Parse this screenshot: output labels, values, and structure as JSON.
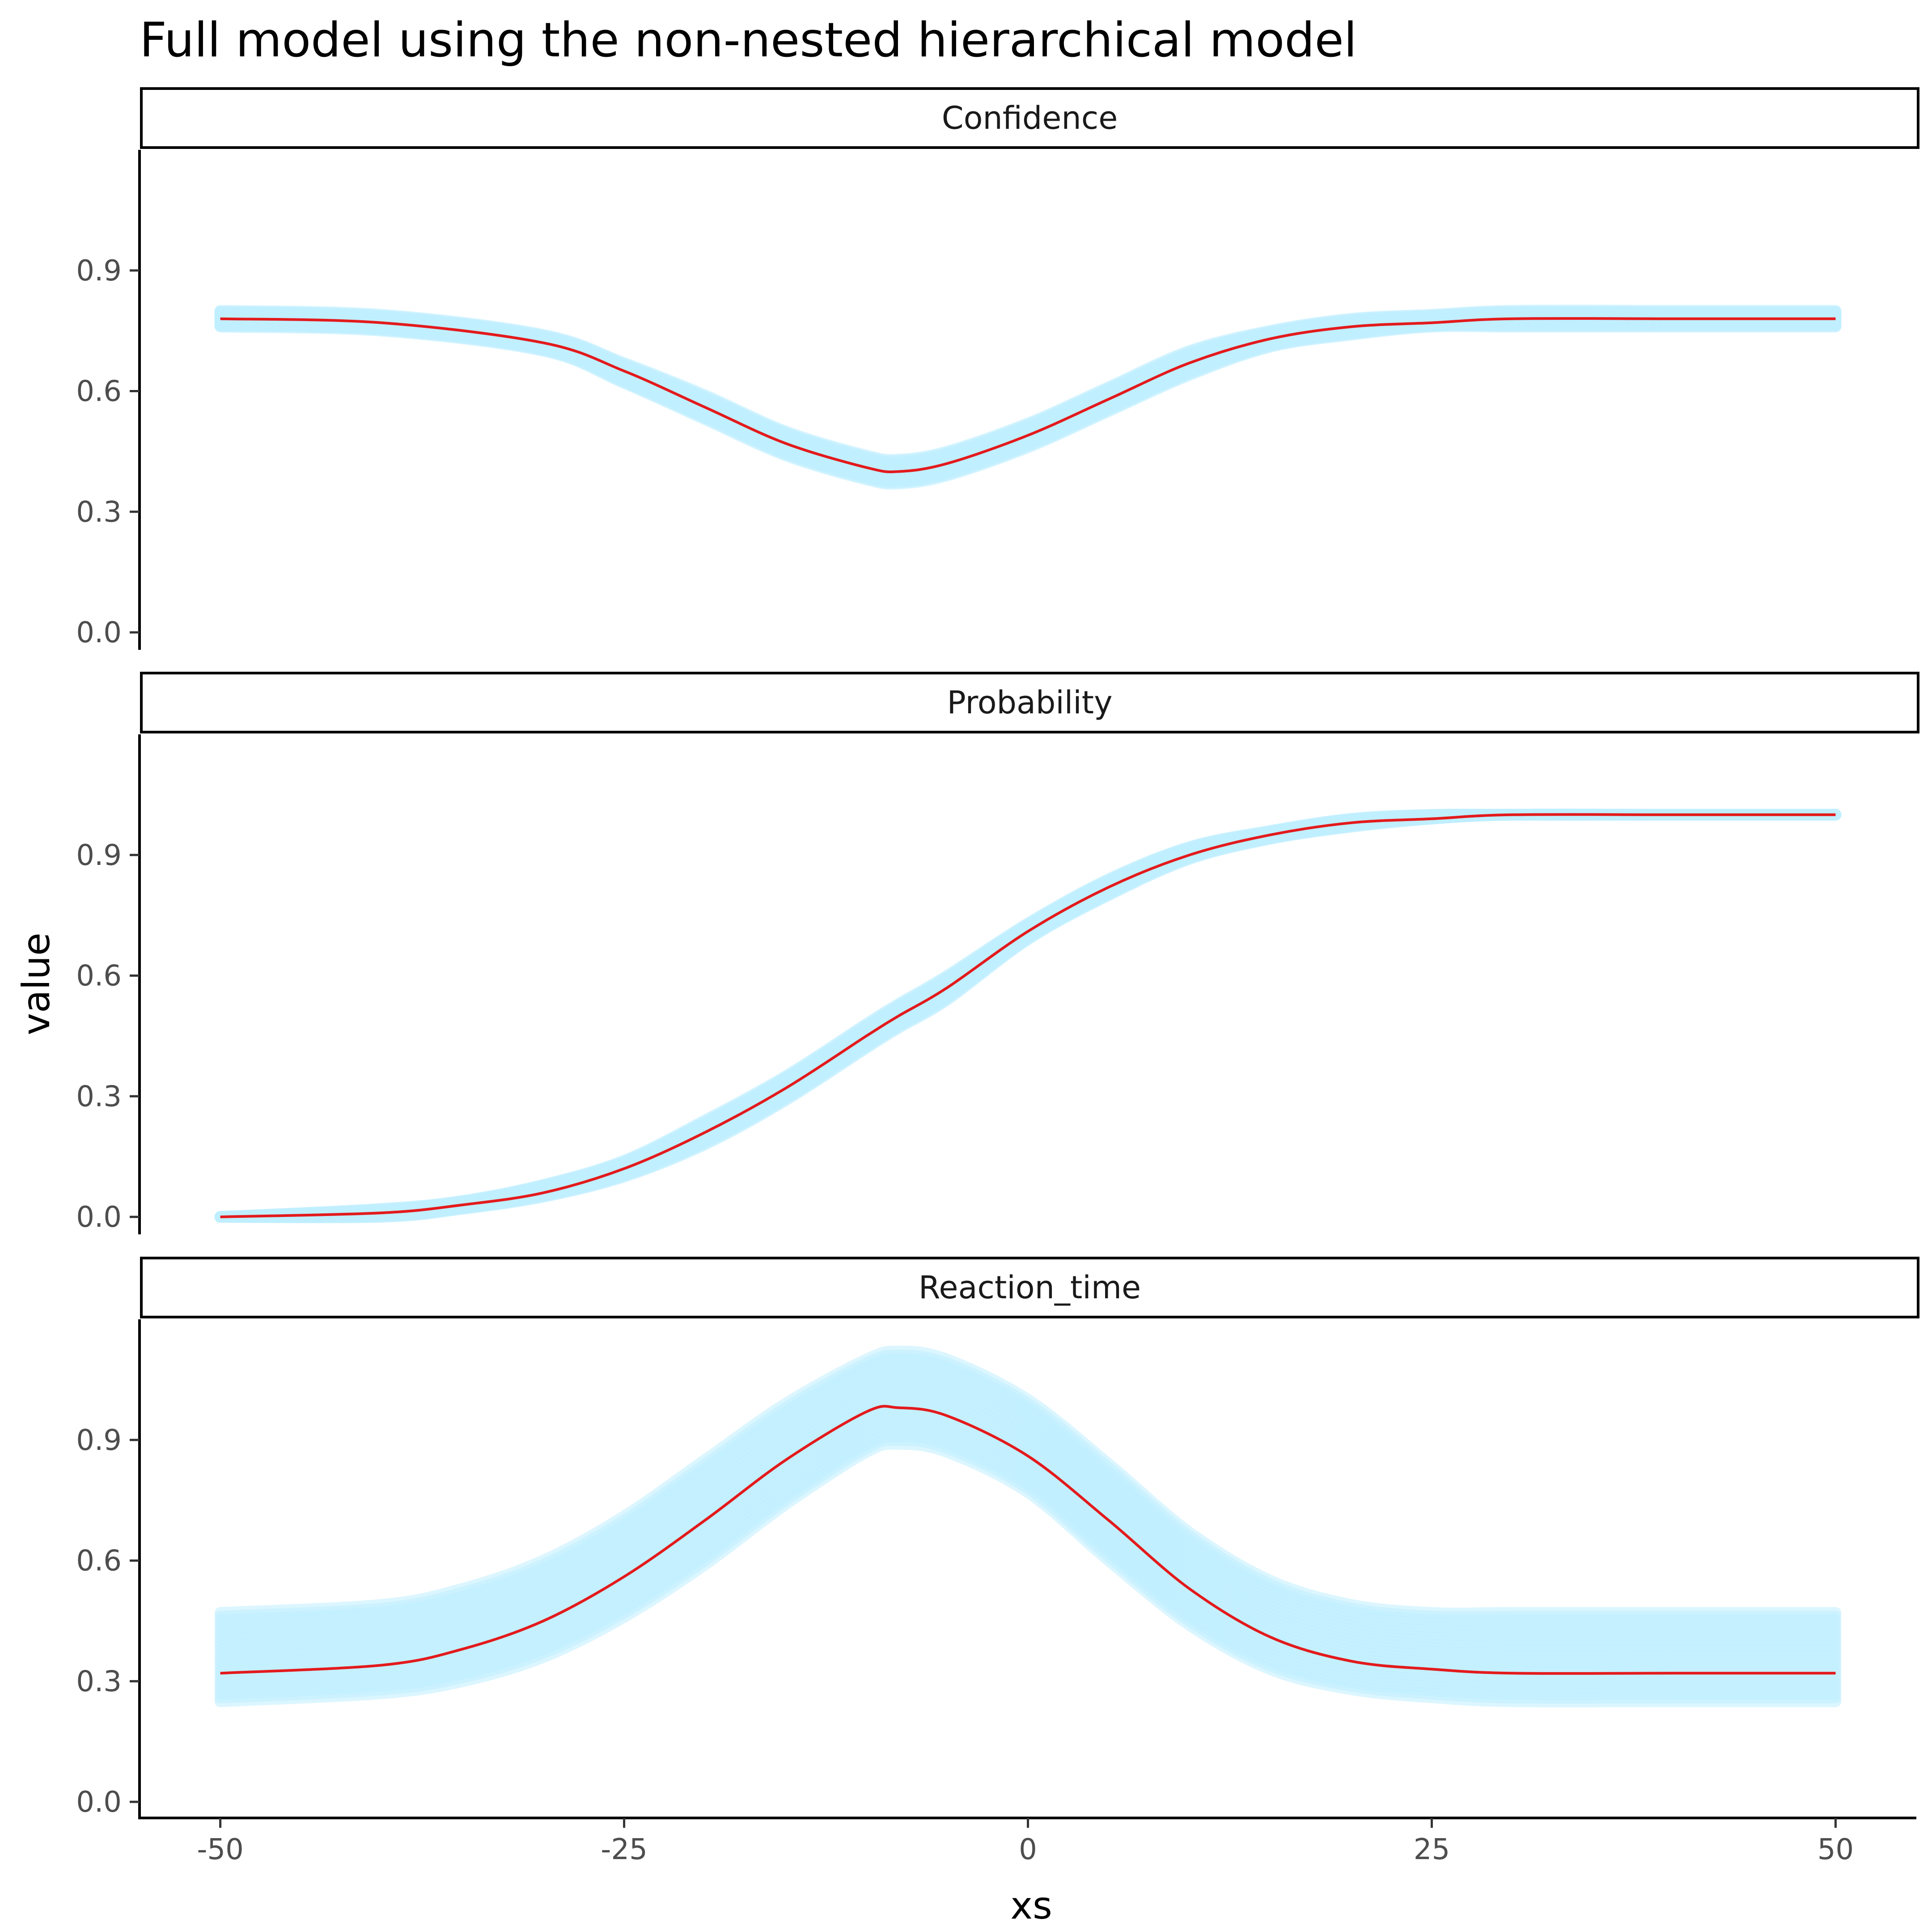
{
  "chart_data": {
    "type": "line",
    "title": "Full model using the non-nested hierarchical model",
    "xlabel": "xs",
    "ylabel": "value",
    "xlim": [
      -55,
      55
    ],
    "xticks": [
      -50,
      -25,
      0,
      25,
      50
    ],
    "xtick_labels": [
      "-50",
      "-25",
      "0",
      "25",
      "50"
    ],
    "ylim": [
      -0.04,
      1.2
    ],
    "yticks": [
      0.0,
      0.3,
      0.6,
      0.9
    ],
    "ytick_labels": [
      "0.0",
      "0.3",
      "0.6",
      "0.9"
    ],
    "grid": false,
    "legend": "none",
    "colors": {
      "posterior_draws": "#bfefff",
      "posterior_mean": "#e31a1c",
      "axis": "#000000",
      "tick_text": "#4d4d4d"
    },
    "facets": [
      {
        "label": "Confidence",
        "mean_series": {
          "x": [
            -50,
            -40,
            -30,
            -25,
            -20,
            -15,
            -10,
            -8,
            -5,
            0,
            5,
            10,
            15,
            20,
            25,
            30,
            40,
            50
          ],
          "y": [
            0.78,
            0.77,
            0.72,
            0.65,
            0.56,
            0.47,
            0.41,
            0.4,
            0.42,
            0.49,
            0.58,
            0.67,
            0.73,
            0.76,
            0.77,
            0.78,
            0.78,
            0.78
          ]
        },
        "draws_band": {
          "x": [
            -50,
            -40,
            -30,
            -25,
            -20,
            -15,
            -10,
            -8,
            -5,
            0,
            5,
            10,
            15,
            20,
            25,
            30,
            40,
            50
          ],
          "lower": [
            0.76,
            0.75,
            0.7,
            0.62,
            0.53,
            0.44,
            0.38,
            0.37,
            0.39,
            0.46,
            0.55,
            0.64,
            0.71,
            0.74,
            0.76,
            0.76,
            0.76,
            0.76
          ],
          "upper": [
            0.8,
            0.79,
            0.74,
            0.67,
            0.59,
            0.5,
            0.44,
            0.43,
            0.45,
            0.52,
            0.61,
            0.7,
            0.75,
            0.78,
            0.79,
            0.8,
            0.8,
            0.8
          ]
        }
      },
      {
        "label": "Probability",
        "mean_series": {
          "x": [
            -50,
            -40,
            -35,
            -30,
            -25,
            -20,
            -15,
            -10,
            -8,
            -5,
            0,
            5,
            10,
            15,
            20,
            25,
            30,
            40,
            50
          ],
          "y": [
            0.0,
            0.01,
            0.03,
            0.06,
            0.12,
            0.21,
            0.32,
            0.45,
            0.5,
            0.57,
            0.71,
            0.82,
            0.9,
            0.95,
            0.98,
            0.99,
            1.0,
            1.0,
            1.0
          ]
        },
        "draws_band": {
          "x": [
            -50,
            -40,
            -35,
            -30,
            -25,
            -20,
            -15,
            -10,
            -8,
            -5,
            0,
            5,
            10,
            15,
            20,
            25,
            30,
            40,
            50
          ],
          "lower": [
            0.0,
            0.0,
            0.02,
            0.05,
            0.1,
            0.18,
            0.29,
            0.42,
            0.47,
            0.54,
            0.69,
            0.8,
            0.89,
            0.94,
            0.97,
            0.99,
            1.0,
            1.0,
            1.0
          ],
          "upper": [
            0.0,
            0.02,
            0.04,
            0.08,
            0.14,
            0.24,
            0.35,
            0.48,
            0.53,
            0.6,
            0.73,
            0.84,
            0.92,
            0.96,
            0.99,
            1.0,
            1.0,
            1.0,
            1.0
          ]
        }
      },
      {
        "label": "Reaction_time",
        "mean_series": {
          "x": [
            -50,
            -40,
            -35,
            -30,
            -25,
            -20,
            -15,
            -10,
            -8,
            -5,
            0,
            5,
            10,
            15,
            20,
            25,
            30,
            40,
            50
          ],
          "y": [
            0.32,
            0.34,
            0.38,
            0.45,
            0.56,
            0.7,
            0.85,
            0.97,
            0.98,
            0.96,
            0.86,
            0.7,
            0.53,
            0.41,
            0.35,
            0.33,
            0.32,
            0.32,
            0.32
          ]
        },
        "draws_band": {
          "x": [
            -50,
            -40,
            -35,
            -30,
            -25,
            -20,
            -15,
            -10,
            -8,
            -5,
            0,
            5,
            10,
            15,
            20,
            25,
            30,
            40,
            50
          ],
          "lower": [
            0.25,
            0.27,
            0.3,
            0.36,
            0.46,
            0.59,
            0.74,
            0.87,
            0.89,
            0.87,
            0.77,
            0.6,
            0.44,
            0.33,
            0.28,
            0.26,
            0.25,
            0.25,
            0.25
          ],
          "upper": [
            0.47,
            0.49,
            0.53,
            0.6,
            0.71,
            0.85,
            0.99,
            1.1,
            1.12,
            1.1,
            1.0,
            0.84,
            0.67,
            0.55,
            0.49,
            0.47,
            0.47,
            0.47,
            0.47
          ]
        }
      }
    ]
  }
}
